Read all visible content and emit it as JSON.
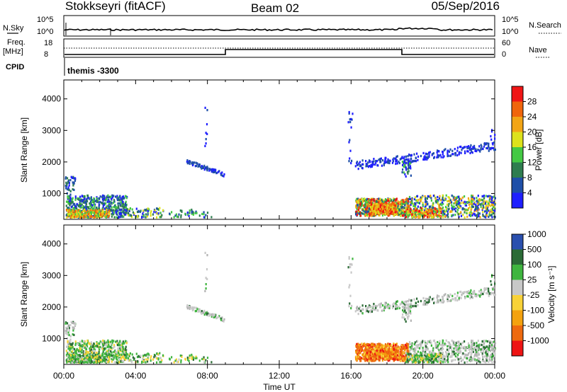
{
  "header": {
    "station": "Stokkseyri (fitACF)",
    "beam": "Beam 02",
    "date": "05/Sep/2016"
  },
  "info_panels": {
    "nsky_label": "N.Sky",
    "nsky_ticks": [
      "10^5",
      "10^0"
    ],
    "nsearch_label": "N.Search",
    "nsearch_ticks": [
      "10^5",
      "10^0"
    ],
    "freq_label_line1": "Freq.",
    "freq_label_line2": "[MHz]",
    "freq_ticks": [
      "18",
      "8"
    ],
    "nave_label": "Nave",
    "nave_ticks": [
      "60",
      "0"
    ],
    "cpid_label": "CPID",
    "cpid_value": "themis -3300"
  },
  "colors": {
    "power_scale": [
      "#1f1fff",
      "#1f4fa8",
      "#2e7d4f",
      "#44c944",
      "#dde21c",
      "#f2a516",
      "#f0650c",
      "#f01616"
    ],
    "velocity_scale": [
      "#ee1414",
      "#ee6a0f",
      "#f4a20f",
      "#f8d238",
      "#c8c8c8",
      "#3fb53f",
      "#2b6b36",
      "#2a4fae"
    ],
    "velocity_ground": "#b4b4b4"
  },
  "chart_data": [
    {
      "type": "heatmap",
      "name": "power",
      "xlabel": "Time UT",
      "ylabel": "Slant Range [km]",
      "x_ticks": [
        "00:00",
        "04:00",
        "08:00",
        "12:00",
        "16:00",
        "20:00",
        "00:00"
      ],
      "xlim_hours": [
        0,
        24
      ],
      "y_ticks": [
        "1000",
        "2000",
        "3000",
        "4000"
      ],
      "ylim_km": [
        180,
        4600
      ],
      "colorbar_label": "Power [dB]",
      "colorbar_ticks": [
        "4",
        "8",
        "12",
        "16",
        "20",
        "24",
        "28"
      ],
      "colorbar_range": [
        0,
        32
      ]
    },
    {
      "type": "heatmap",
      "name": "velocity",
      "xlabel": "Time UT",
      "ylabel": "Slant Range [km]",
      "x_ticks": [
        "00:00",
        "04:00",
        "08:00",
        "12:00",
        "16:00",
        "20:00",
        "00:00"
      ],
      "xlim_hours": [
        0,
        24
      ],
      "y_ticks": [
        "1000",
        "2000",
        "3000",
        "4000"
      ],
      "ylim_km": [
        180,
        4600
      ],
      "colorbar_label": "Velocity [m s⁻¹]",
      "colorbar_ticks": [
        "-1000",
        "-500",
        "-100",
        "-25",
        "25",
        "100",
        "500",
        "1000"
      ]
    }
  ],
  "bottom_axis": {
    "ticks": [
      "00:00",
      "04:00",
      "08:00",
      "12:00",
      "16:00",
      "20:00",
      "00:00"
    ],
    "label": "Time UT"
  }
}
